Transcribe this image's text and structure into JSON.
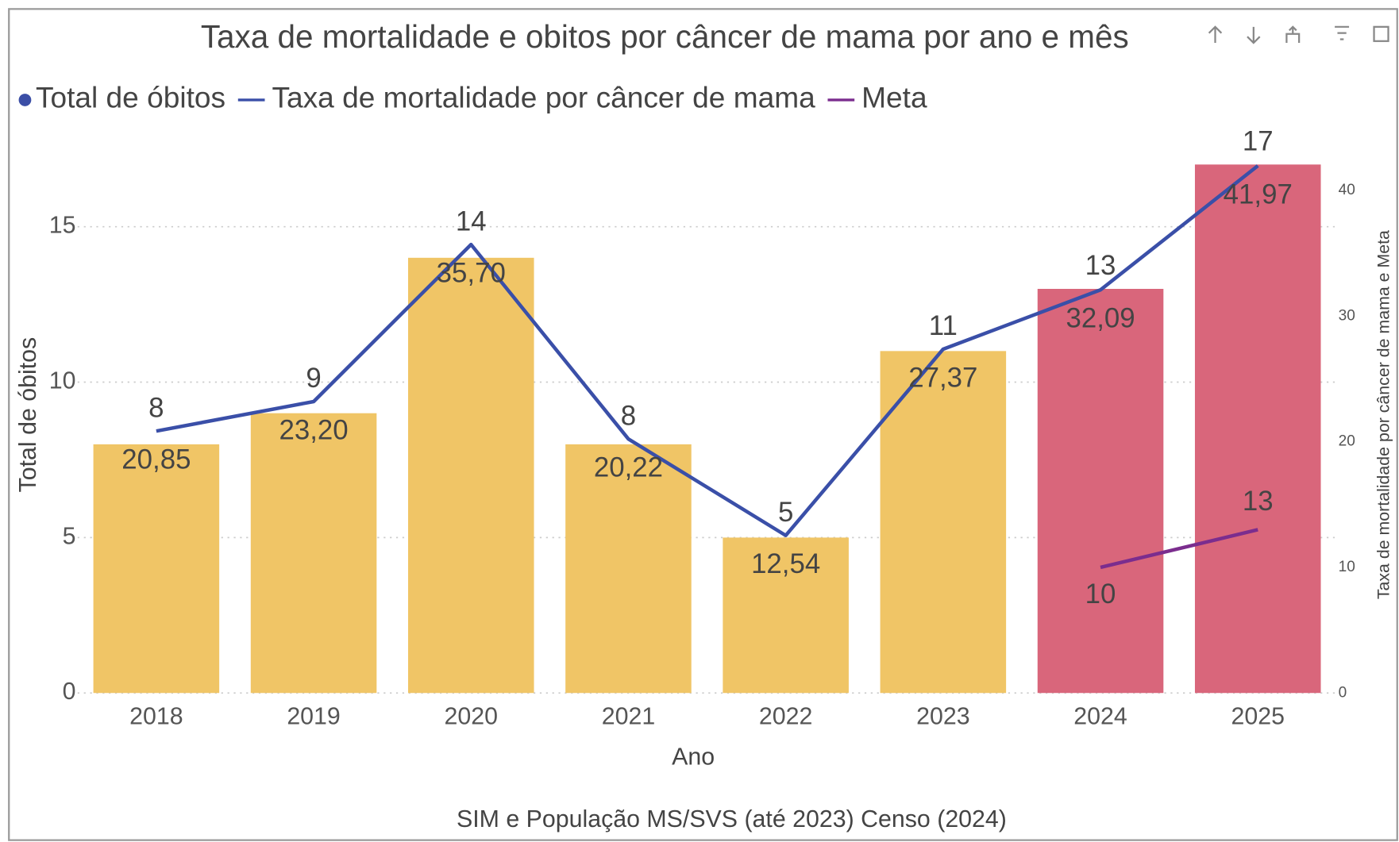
{
  "chart_data": {
    "type": "bar_line",
    "title": "Taxa de mortalidade e obitos por câncer de mama por ano e mês",
    "x_label": "Ano",
    "y_label": "Total de óbitos",
    "y2_label": "Taxa de mortalidade por câncer de mama e Meta",
    "footer": "SIM e População MS/SVS (até 2023) Censo (2024)",
    "categories": [
      "2018",
      "2019",
      "2020",
      "2021",
      "2022",
      "2023",
      "2024",
      "2025"
    ],
    "series": [
      {
        "name": "Total de óbitos",
        "type": "bar",
        "color": "#3b4ea6",
        "colors": [
          "#f0c566",
          "#f0c566",
          "#f0c566",
          "#f0c566",
          "#f0c566",
          "#f0c566",
          "#d9667b",
          "#d9667b"
        ],
        "values": [
          8,
          9,
          14,
          8,
          5,
          11,
          13,
          17
        ]
      },
      {
        "name": "Taxa de mortalidade por câncer de mama",
        "type": "line",
        "axis": "y2",
        "color": "#3a4fa8",
        "values": [
          20.85,
          23.2,
          35.7,
          20.22,
          12.54,
          27.37,
          32.09,
          41.97
        ],
        "value_labels": [
          "20,85",
          "23,20",
          "35,70",
          "20,22",
          "12,54",
          "27,37",
          "32,09",
          "41,97"
        ]
      },
      {
        "name": "Meta",
        "type": "line",
        "axis": "y2",
        "color": "#7b2d8e",
        "values": [
          null,
          null,
          null,
          null,
          null,
          null,
          10,
          13
        ]
      }
    ],
    "ylim": [
      0,
      17.7
    ],
    "yticks": [
      0,
      5,
      10,
      15
    ],
    "y2lim": [
      0,
      43.8
    ],
    "y2ticks": [
      0,
      10,
      20,
      30,
      40
    ],
    "grid": true
  }
}
